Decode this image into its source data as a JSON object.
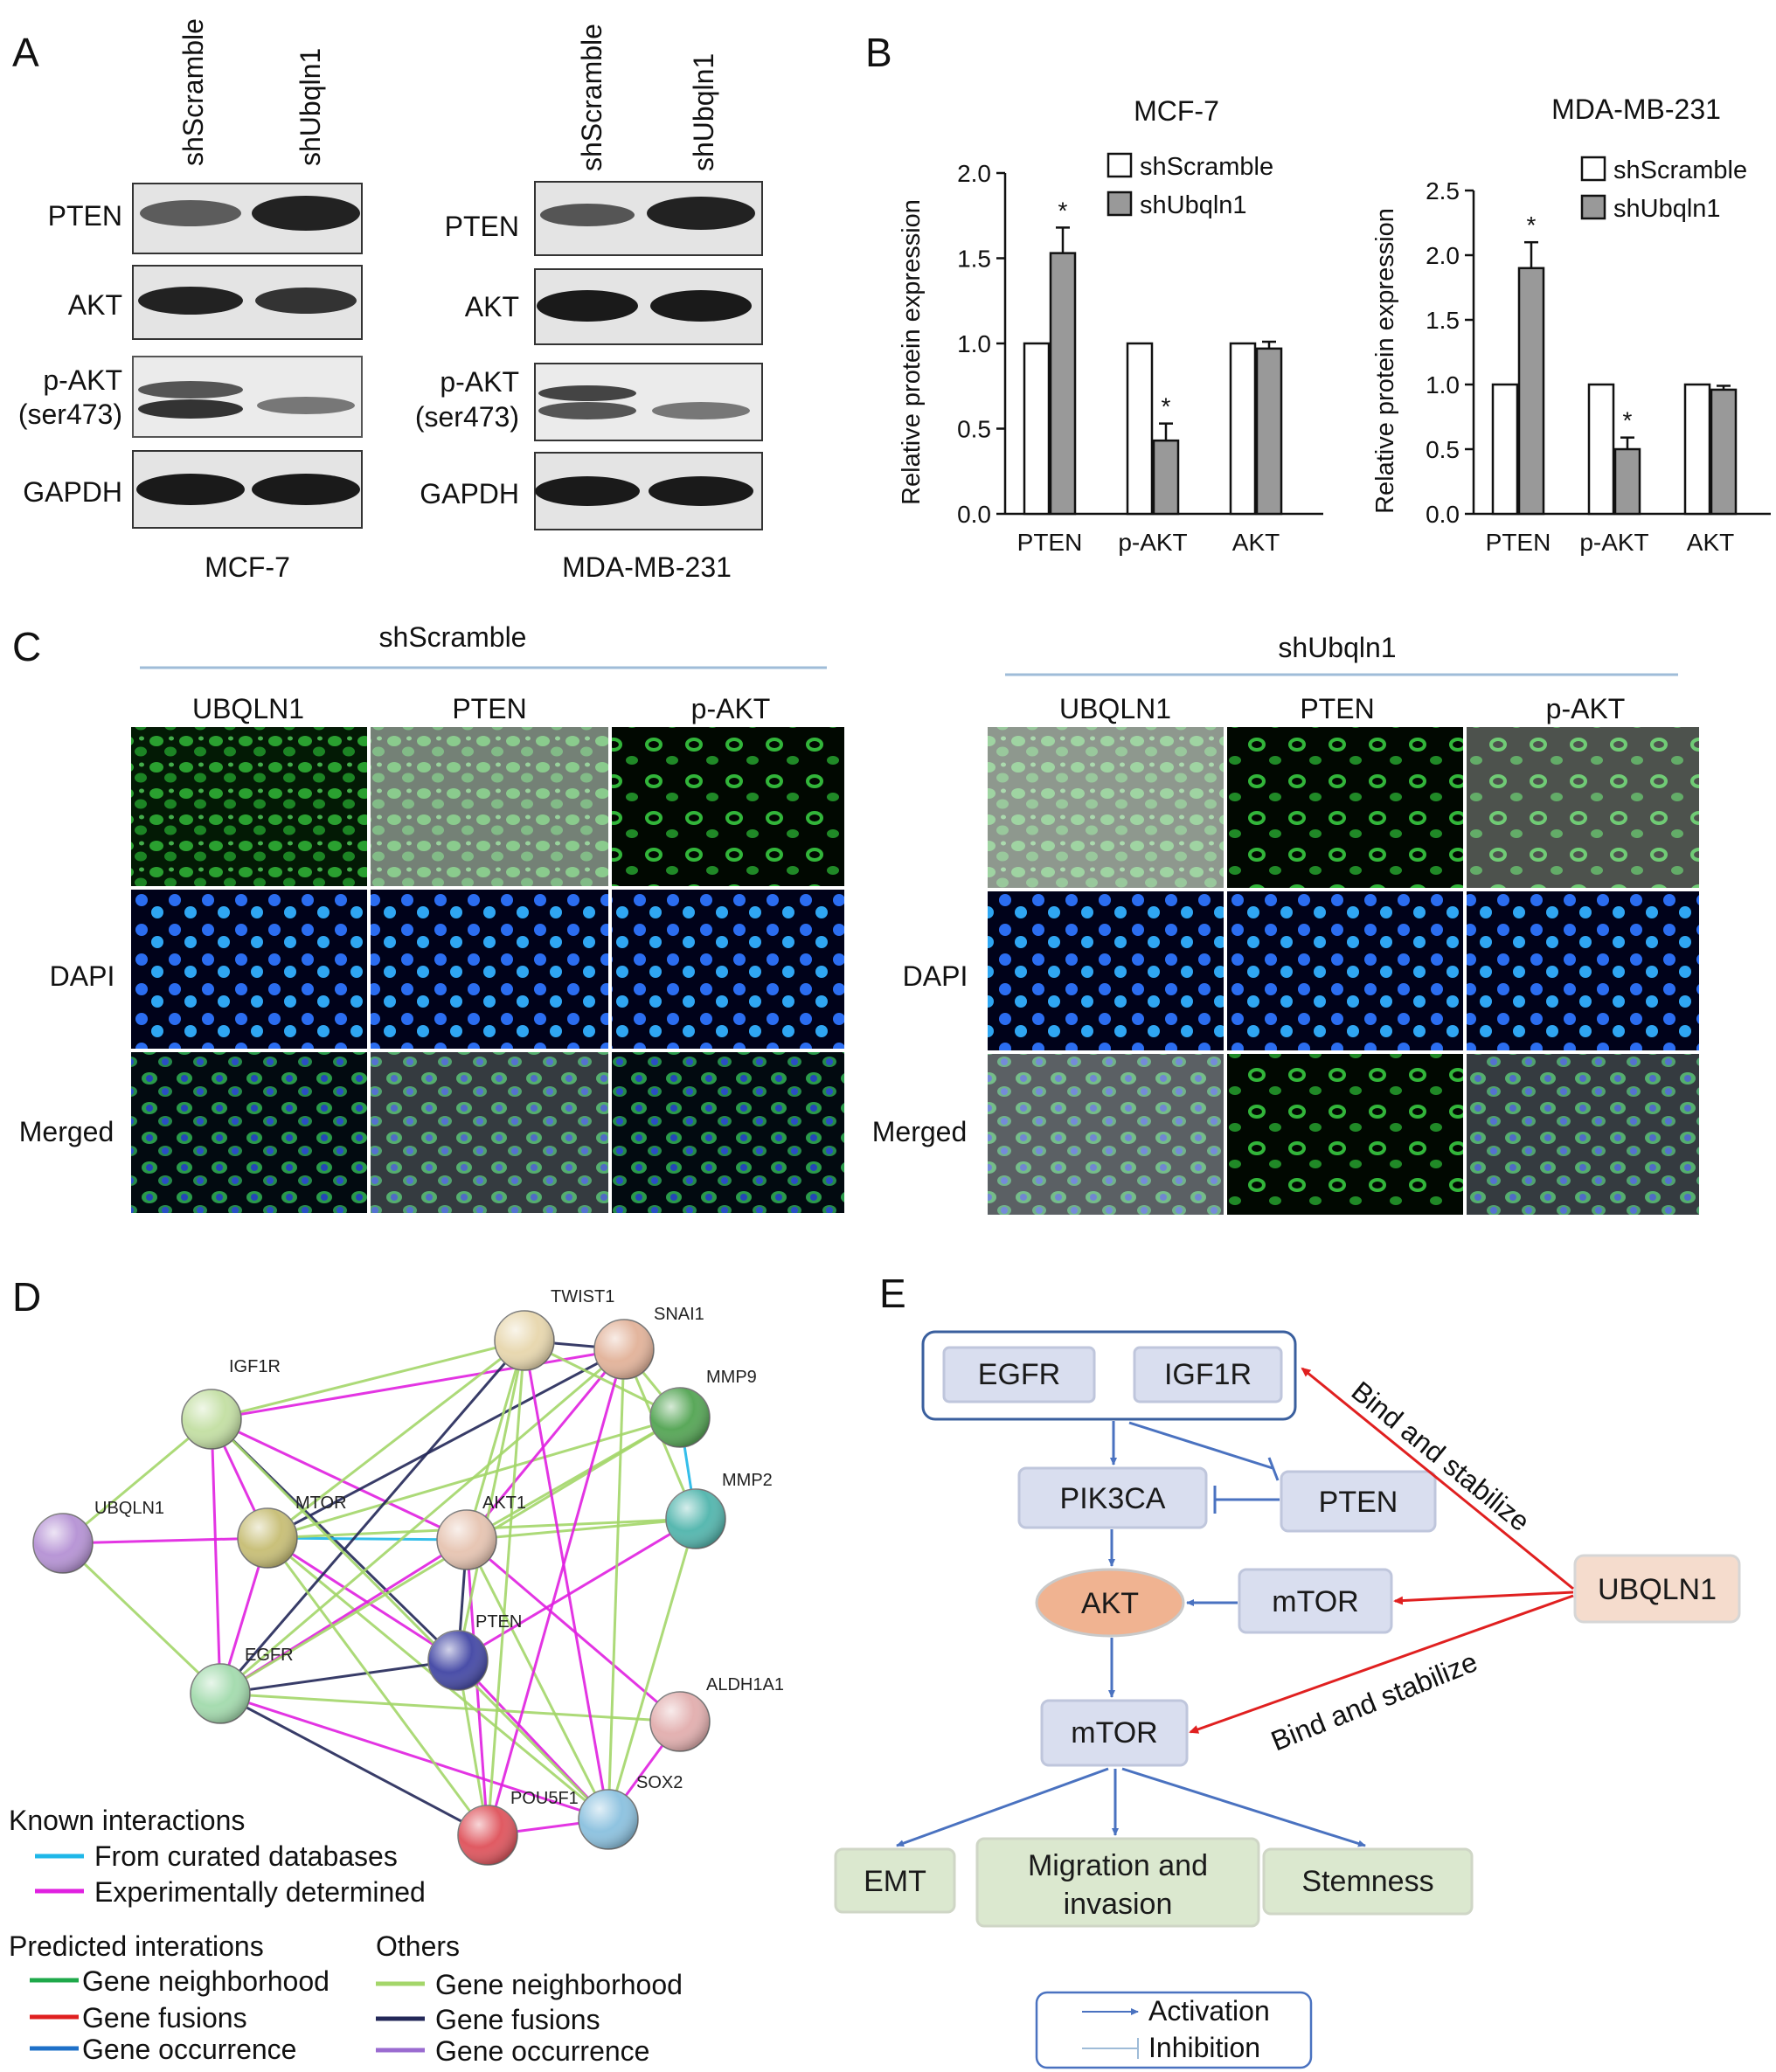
{
  "panels": {
    "a": "A",
    "b": "B",
    "c": "C",
    "d": "D",
    "e": "E"
  },
  "colors": {
    "shScramble_bar": "#ffffff",
    "shUbqln1_bar": "#999999",
    "gfp": "#1f9e2a",
    "dapi": "#1d47d8",
    "activation": "#4a72c0",
    "bind": "#e02020"
  },
  "blots": {
    "lanes": [
      "shScramble",
      "shUbqln1"
    ],
    "left": {
      "cell_line": "MCF-7",
      "proteins": [
        "PTEN",
        "AKT",
        "p-AKT",
        "(ser473)",
        "GAPDH"
      ]
    },
    "right": {
      "cell_line": "MDA-MB-231",
      "proteins": [
        "PTEN",
        "AKT",
        "p-AKT",
        "(ser473)",
        "GAPDH"
      ]
    }
  },
  "chart_data": [
    {
      "type": "bar",
      "title": "MCF-7",
      "ylabel": "Relative protein expression",
      "categories": [
        "PTEN",
        "p-AKT",
        "AKT"
      ],
      "series": [
        {
          "name": "shScramble",
          "values": [
            1.0,
            1.0,
            1.0
          ],
          "errors": [
            0,
            0,
            0
          ]
        },
        {
          "name": "shUbqln1",
          "values": [
            1.53,
            0.43,
            0.97
          ],
          "errors": [
            0.15,
            0.1,
            0.04
          ]
        }
      ],
      "significance": [
        "*",
        "*",
        ""
      ],
      "ylim": [
        0,
        2.0
      ],
      "yticks": [
        "0.0",
        "0.5",
        "1.0",
        "1.5",
        "2.0"
      ],
      "legend": "top-right",
      "grid": false
    },
    {
      "type": "bar",
      "title": "MDA-MB-231",
      "ylabel": "Relative protein expression",
      "categories": [
        "PTEN",
        "p-AKT",
        "AKT"
      ],
      "series": [
        {
          "name": "shScramble",
          "values": [
            1.0,
            1.0,
            1.0
          ],
          "errors": [
            0,
            0,
            0
          ]
        },
        {
          "name": "shUbqln1",
          "values": [
            1.9,
            0.5,
            0.96
          ],
          "errors": [
            0.2,
            0.09,
            0.03
          ]
        }
      ],
      "significance": [
        "*",
        "*",
        ""
      ],
      "ylim": [
        0,
        2.5
      ],
      "yticks": [
        "0.0",
        "0.5",
        "1.0",
        "1.5",
        "2.0",
        "2.5"
      ],
      "legend": "top-right",
      "grid": false
    }
  ],
  "if_panel": {
    "groups": [
      "shScramble",
      "shUbqln1"
    ],
    "columns": [
      "UBQLN1",
      "PTEN",
      "p-AKT"
    ],
    "rows": [
      "DAPI",
      "Merged"
    ]
  },
  "network": {
    "nodes": [
      "TWIST1",
      "SNAI1",
      "MMP9",
      "IGF1R",
      "MMP2",
      "UBQLN1",
      "MTOR",
      "AKT1",
      "PTEN",
      "EGFR",
      "ALDH1A1",
      "SOX2",
      "POU5F1"
    ],
    "legend": {
      "known_title": "Known interactions",
      "known": [
        "From curated databases",
        "Experimentally determined"
      ],
      "predicted_title": "Predicted interations",
      "predicted": [
        "Gene neighborhood",
        "Gene fusions",
        "Gene occurrence"
      ],
      "others_title": "Others",
      "others": [
        "Gene neighborhood",
        "Gene fusions",
        "Gene occurrence"
      ]
    }
  },
  "pathway": {
    "boxes": {
      "egfr": "EGFR",
      "igf1r": "IGF1R",
      "pik3ca": "PIK3CA",
      "pten": "PTEN",
      "akt": "AKT",
      "mtor_upper": "mTOR",
      "ubqln1": "UBQLN1",
      "mtor_lower": "mTOR",
      "emt": "EMT",
      "migration_1": "Migration and",
      "migration_2": "invasion",
      "stemness": "Stemness"
    },
    "labels": {
      "bind_upper": "Bind and stabilize",
      "bind_lower": "Bind and stabilize"
    },
    "legend": {
      "activation": "Activation",
      "inhibition": "Inhibition"
    }
  }
}
